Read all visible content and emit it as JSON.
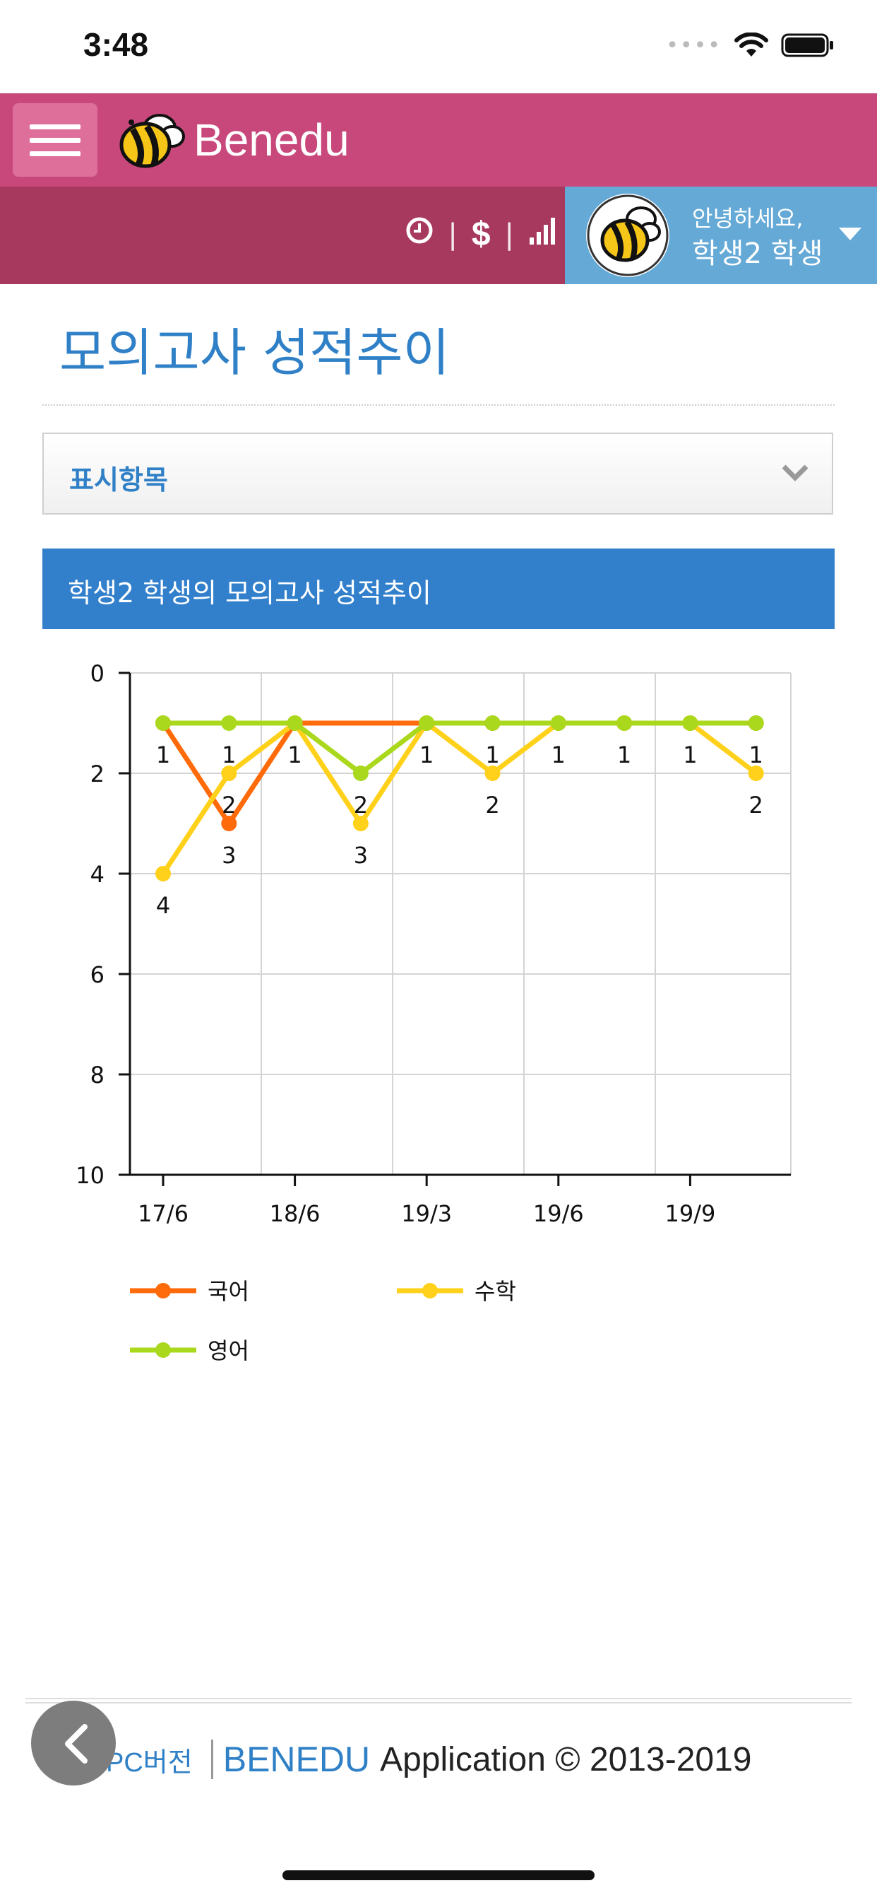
{
  "status": {
    "time": "3:48"
  },
  "app": {
    "brand": "Benedu"
  },
  "user": {
    "greeting": "안녕하세요,",
    "name": "학생2 학생"
  },
  "page": {
    "title": "모의고사 성적추이"
  },
  "selector": {
    "label": "표시항목"
  },
  "chart_header": {
    "title": "학생2 학생의 모의고사 성적추이"
  },
  "chart_data": {
    "type": "line",
    "y_reversed": true,
    "ylim": [
      0,
      10
    ],
    "yticks": [
      0,
      2,
      4,
      6,
      8,
      10
    ],
    "x_labels": [
      "17/6",
      "18/6",
      "19/3",
      "19/6",
      "19/9"
    ],
    "x_label_indices": [
      0,
      2,
      4,
      6,
      8
    ],
    "grid": true,
    "legend_position": "bottom",
    "series": [
      {
        "name": "국어",
        "color": "#ff6a0a",
        "values": [
          1,
          3,
          1,
          null,
          1,
          1,
          1,
          1,
          1,
          1
        ]
      },
      {
        "name": "수학",
        "color": "#ffd11a",
        "values": [
          4,
          2,
          1,
          3,
          1,
          2,
          1,
          1,
          1,
          2
        ]
      },
      {
        "name": "영어",
        "color": "#a9d81c",
        "values": [
          1,
          1,
          1,
          2,
          1,
          1,
          1,
          1,
          1,
          1
        ]
      }
    ],
    "data_labels": [
      {
        "point": 0,
        "text": "1",
        "pos": "below"
      },
      {
        "point": 0,
        "text": "4",
        "pos": "below-4"
      },
      {
        "point": 1,
        "text": "1",
        "pos": "below"
      },
      {
        "point": 1,
        "text": "2",
        "pos": "below-2"
      },
      {
        "point": 1,
        "text": "3",
        "pos": "below-3"
      },
      {
        "point": 2,
        "text": "1",
        "pos": "below"
      },
      {
        "point": 3,
        "text": "2",
        "pos": "below-2"
      },
      {
        "point": 3,
        "text": "3",
        "pos": "below-3"
      },
      {
        "point": 4,
        "text": "1",
        "pos": "below"
      },
      {
        "point": 5,
        "text": "1",
        "pos": "below"
      },
      {
        "point": 5,
        "text": "2",
        "pos": "below-2"
      },
      {
        "point": 6,
        "text": "1",
        "pos": "below"
      },
      {
        "point": 7,
        "text": "1",
        "pos": "below"
      },
      {
        "point": 8,
        "text": "1",
        "pos": "below"
      },
      {
        "point": 9,
        "text": "1",
        "pos": "below"
      },
      {
        "point": 9,
        "text": "2",
        "pos": "below-2"
      }
    ]
  },
  "footer": {
    "pc_version": "PC버전",
    "brand": "BENEDU",
    "rest": "Application © 2013-2019"
  },
  "icons": {
    "clock": "clock-icon",
    "money": "dollar-icon",
    "signal": "bar-chart-icon",
    "back": "chevron-left-icon"
  }
}
